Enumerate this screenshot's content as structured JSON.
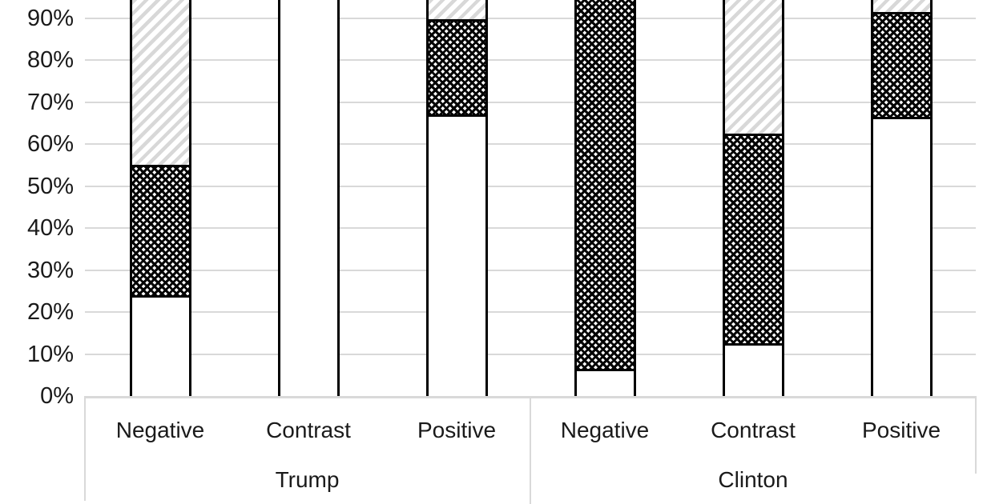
{
  "chart_data": {
    "type": "bar",
    "subtype": "stacked-100-percent-column",
    "title": "",
    "groups": [
      {
        "label": "Trump",
        "categories": [
          "Negative",
          "Contrast",
          "Positive"
        ]
      },
      {
        "label": "Clinton",
        "categories": [
          "Negative",
          "Contrast",
          "Positive"
        ]
      }
    ],
    "series": [
      {
        "name": "plain-white-fill",
        "values_pct": [
          23.5,
          100,
          66.5,
          6,
          12,
          66
        ]
      },
      {
        "name": "dense-crosshatch-fill",
        "values_pct": [
          31.5,
          0,
          23.2,
          91,
          50.5,
          25.4
        ]
      },
      {
        "name": "light-diagonal-stripe-fill",
        "values_pct": [
          45,
          0,
          10.3,
          3,
          37.5,
          8.6
        ]
      }
    ],
    "y_axis": {
      "visible_tick_labels": [
        "0%",
        "10%",
        "20%",
        "30%",
        "40%",
        "50%",
        "60%",
        "70%",
        "80%",
        "90%"
      ],
      "ylim": [
        0,
        100
      ],
      "top_cropped": true
    },
    "grid": true,
    "legend": "not visible (cropped out of screenshot)",
    "notes": "Screenshot is cropped at the top edge: bars, the 100% gridline and any title/legend run past the visible area. Upper split of Clinton-Negative bar estimated (hidden by crop)."
  },
  "colors": {
    "background": "#ffffff",
    "gridline": "#d9d9d9",
    "bar_border": "#000000",
    "stripe_gray": "#d8d8d8",
    "text": "#1a1a1a"
  }
}
